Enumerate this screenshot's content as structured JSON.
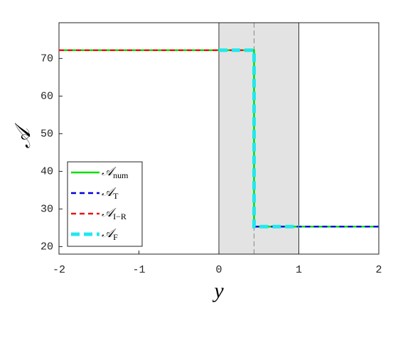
{
  "chart_data": {
    "type": "line",
    "xlabel": "y",
    "ylabel": "𝒜",
    "xlim": [
      -2,
      2
    ],
    "ylim": [
      18,
      79.5
    ],
    "xticks": [
      -2,
      -1,
      0,
      1,
      2
    ],
    "yticks": [
      20,
      30,
      40,
      50,
      60,
      70
    ],
    "shaded_region": [
      0,
      1
    ],
    "vline": 0.44,
    "legend": "lower left",
    "series": [
      {
        "name": "𝒜",
        "subscript": "num",
        "color": "#00e000",
        "dash": "solid",
        "width": 2.5,
        "x": [
          -2,
          0.44,
          0.44,
          2
        ],
        "values": [
          72.2,
          72.2,
          25.3,
          25.3
        ]
      },
      {
        "name": "𝒜",
        "subscript": "T",
        "color": "#0000dd",
        "dash": "dashed",
        "width": 2.5,
        "x": [
          0.44,
          2
        ],
        "values": [
          25.3,
          25.3
        ]
      },
      {
        "name": "𝒜",
        "subscript": "I−R",
        "color": "#ee1111",
        "dash": "dashed",
        "width": 2.5,
        "x": [
          -2,
          0.44
        ],
        "values": [
          72.2,
          72.2
        ]
      },
      {
        "name": "𝒜",
        "subscript": "F",
        "color": "#22e8ee",
        "dash": "dashed",
        "width": 5,
        "x": [
          0,
          0.44,
          0.44,
          1
        ],
        "values": [
          72.2,
          72.2,
          25.3,
          25.3
        ]
      }
    ]
  }
}
